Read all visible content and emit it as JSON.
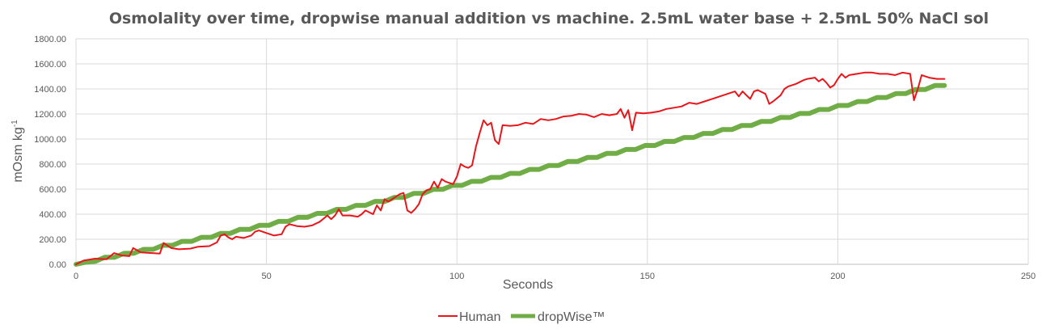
{
  "chart_data": {
    "type": "line",
    "title": "Osmolality over time, dropwise manual addition vs machine. 2.5mL water base + 2.5mL 50% NaCl sol",
    "xlabel": "Seconds",
    "ylabel": "mOsm kg",
    "ylabel_superscript": "-1",
    "xlim": [
      0,
      250
    ],
    "ylim": [
      0,
      1800
    ],
    "x_ticks": [
      0,
      50,
      100,
      150,
      200,
      250
    ],
    "y_ticks": [
      "0.00",
      "200.00",
      "400.00",
      "600.00",
      "800.00",
      "1000.00",
      "1200.00",
      "1400.00",
      "1600.00",
      "1800.00"
    ],
    "grid": true,
    "legend_position": "bottom",
    "series": [
      {
        "name": "Human",
        "color": "#e8161b",
        "points": [
          [
            0,
            0
          ],
          [
            2,
            30
          ],
          [
            5,
            45
          ],
          [
            8,
            40
          ],
          [
            10,
            90
          ],
          [
            12,
            70
          ],
          [
            14,
            65
          ],
          [
            15,
            130
          ],
          [
            17,
            95
          ],
          [
            20,
            90
          ],
          [
            22,
            85
          ],
          [
            23,
            170
          ],
          [
            25,
            130
          ],
          [
            27,
            120
          ],
          [
            30,
            125
          ],
          [
            32,
            140
          ],
          [
            35,
            145
          ],
          [
            37,
            175
          ],
          [
            38,
            230
          ],
          [
            39,
            240
          ],
          [
            40,
            215
          ],
          [
            41,
            200
          ],
          [
            42,
            220
          ],
          [
            44,
            210
          ],
          [
            46,
            230
          ],
          [
            47,
            260
          ],
          [
            48,
            270
          ],
          [
            50,
            250
          ],
          [
            52,
            230
          ],
          [
            54,
            240
          ],
          [
            55,
            300
          ],
          [
            56,
            320
          ],
          [
            58,
            305
          ],
          [
            60,
            300
          ],
          [
            62,
            310
          ],
          [
            64,
            340
          ],
          [
            66,
            390
          ],
          [
            67,
            360
          ],
          [
            68,
            390
          ],
          [
            69,
            440
          ],
          [
            70,
            390
          ],
          [
            72,
            390
          ],
          [
            74,
            380
          ],
          [
            75,
            400
          ],
          [
            76,
            430
          ],
          [
            78,
            400
          ],
          [
            79,
            470
          ],
          [
            80,
            430
          ],
          [
            81,
            520
          ],
          [
            82,
            500
          ],
          [
            84,
            540
          ],
          [
            85,
            560
          ],
          [
            86,
            570
          ],
          [
            87,
            430
          ],
          [
            88,
            410
          ],
          [
            89,
            440
          ],
          [
            90,
            480
          ],
          [
            91,
            560
          ],
          [
            92,
            590
          ],
          [
            93,
            600
          ],
          [
            94,
            660
          ],
          [
            95,
            610
          ],
          [
            96,
            680
          ],
          [
            97,
            660
          ],
          [
            99,
            640
          ],
          [
            100,
            700
          ],
          [
            101,
            800
          ],
          [
            102,
            780
          ],
          [
            103,
            770
          ],
          [
            104,
            790
          ],
          [
            105,
            940
          ],
          [
            106,
            1050
          ],
          [
            107,
            1150
          ],
          [
            108,
            1110
          ],
          [
            109,
            1130
          ],
          [
            110,
            990
          ],
          [
            111,
            960
          ],
          [
            112,
            1110
          ],
          [
            114,
            1105
          ],
          [
            116,
            1110
          ],
          [
            118,
            1130
          ],
          [
            120,
            1120
          ],
          [
            122,
            1160
          ],
          [
            124,
            1150
          ],
          [
            126,
            1160
          ],
          [
            128,
            1180
          ],
          [
            130,
            1185
          ],
          [
            132,
            1200
          ],
          [
            134,
            1195
          ],
          [
            136,
            1175
          ],
          [
            138,
            1200
          ],
          [
            140,
            1190
          ],
          [
            142,
            1200
          ],
          [
            143,
            1240
          ],
          [
            144,
            1170
          ],
          [
            145,
            1230
          ],
          [
            146,
            1070
          ],
          [
            147,
            1210
          ],
          [
            149,
            1205
          ],
          [
            151,
            1210
          ],
          [
            153,
            1220
          ],
          [
            155,
            1240
          ],
          [
            157,
            1250
          ],
          [
            159,
            1260
          ],
          [
            161,
            1290
          ],
          [
            163,
            1280
          ],
          [
            165,
            1300
          ],
          [
            167,
            1320
          ],
          [
            169,
            1340
          ],
          [
            171,
            1360
          ],
          [
            173,
            1380
          ],
          [
            174,
            1340
          ],
          [
            175,
            1380
          ],
          [
            176,
            1350
          ],
          [
            177,
            1320
          ],
          [
            178,
            1380
          ],
          [
            179,
            1390
          ],
          [
            181,
            1360
          ],
          [
            182,
            1280
          ],
          [
            183,
            1300
          ],
          [
            185,
            1350
          ],
          [
            186,
            1400
          ],
          [
            187,
            1420
          ],
          [
            189,
            1440
          ],
          [
            191,
            1470
          ],
          [
            192,
            1480
          ],
          [
            194,
            1490
          ],
          [
            195,
            1460
          ],
          [
            196,
            1480
          ],
          [
            197,
            1450
          ],
          [
            198,
            1410
          ],
          [
            199,
            1430
          ],
          [
            200,
            1480
          ],
          [
            201,
            1520
          ],
          [
            202,
            1490
          ],
          [
            203,
            1510
          ],
          [
            205,
            1520
          ],
          [
            207,
            1530
          ],
          [
            209,
            1530
          ],
          [
            211,
            1520
          ],
          [
            213,
            1520
          ],
          [
            215,
            1510
          ],
          [
            217,
            1530
          ],
          [
            219,
            1520
          ],
          [
            220,
            1310
          ],
          [
            221,
            1400
          ],
          [
            222,
            1510
          ],
          [
            224,
            1490
          ],
          [
            226,
            1480
          ],
          [
            228,
            1480
          ]
        ]
      },
      {
        "name": "dropWise™",
        "color": "#70ad47",
        "start": [
          0,
          0
        ],
        "end": [
          228,
          1435
        ],
        "steps": 90,
        "points": []
      }
    ]
  }
}
